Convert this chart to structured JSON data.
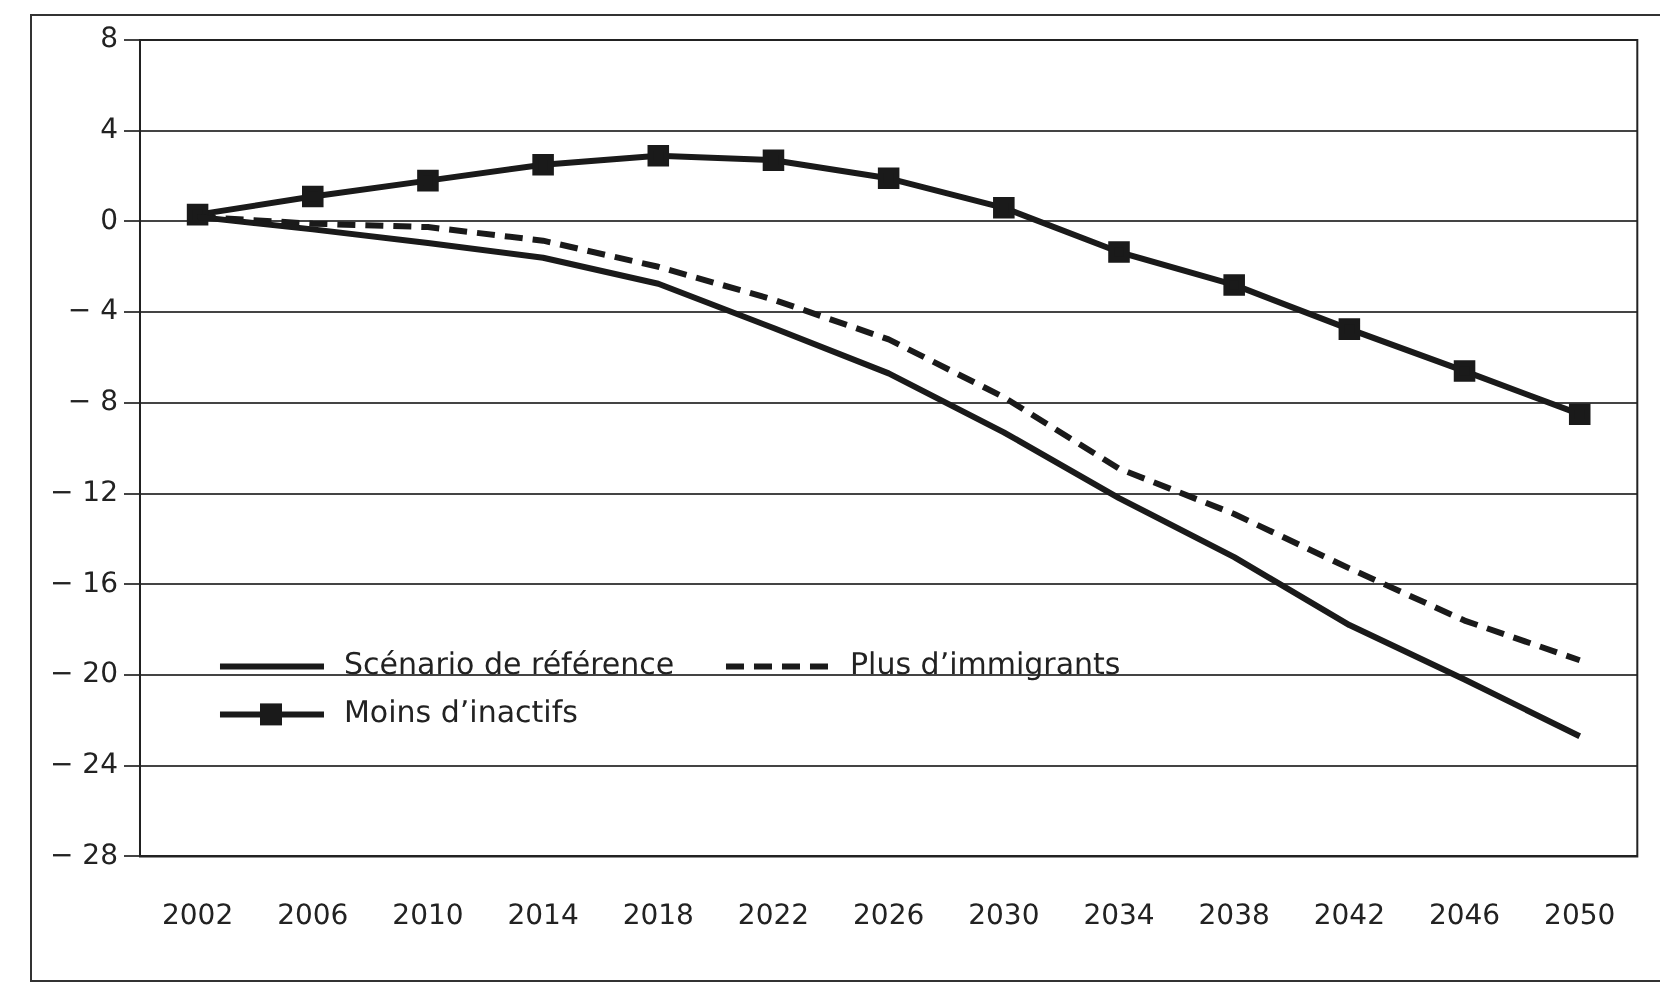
{
  "chart_data": {
    "type": "line",
    "categories": [
      "2002",
      "2006",
      "2010",
      "2014",
      "2018",
      "2022",
      "2026",
      "2030",
      "2034",
      "2038",
      "2042",
      "2046",
      "2050"
    ],
    "series": [
      {
        "name": "Scénario de référence",
        "color": "#1a1a1a",
        "line_style": "solid",
        "marker": "none",
        "values": [
          0.2,
          -0.35,
          -0.95,
          -1.6,
          -2.75,
          -4.7,
          -6.7,
          -9.3,
          -12.2,
          -14.8,
          -17.8,
          -20.2,
          -22.7
        ]
      },
      {
        "name": "Plus d’immigrants",
        "color": "#1a1a1a",
        "line_style": "dashed",
        "marker": "none",
        "values": [
          0.2,
          -0.1,
          -0.25,
          -0.85,
          -2.0,
          -3.45,
          -5.2,
          -7.75,
          -10.9,
          -12.9,
          -15.3,
          -17.6,
          -19.35
        ]
      },
      {
        "name": "Moins d’inactifs",
        "color": "#1a1a1a",
        "line_style": "solid",
        "marker": "square",
        "values": [
          0.3,
          1.1,
          1.8,
          2.5,
          2.9,
          2.7,
          1.9,
          0.6,
          -1.35,
          -2.8,
          -4.75,
          -6.6,
          -8.5
        ]
      }
    ],
    "ylim": [
      -28,
      8
    ],
    "yticks": [
      {
        "value": 8,
        "label": "8"
      },
      {
        "value": 4,
        "label": "4"
      },
      {
        "value": 0,
        "label": "0"
      },
      {
        "value": -4,
        "label": "− 4"
      },
      {
        "value": -8,
        "label": "− 8"
      },
      {
        "value": -12,
        "label": "− 12"
      },
      {
        "value": -16,
        "label": "− 16"
      },
      {
        "value": -20,
        "label": "− 20"
      },
      {
        "value": -24,
        "label": "− 24"
      },
      {
        "value": -28,
        "label": "− 28"
      }
    ],
    "grid": "y",
    "legend": "bottom left"
  }
}
